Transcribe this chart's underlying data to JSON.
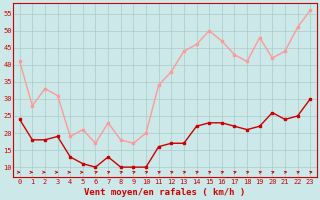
{
  "title": "",
  "xlabel": "Vent moyen/en rafales ( km/h )",
  "xlabel_color": "#cc0000",
  "bg_color": "#cce8e8",
  "grid_color": "#aacccc",
  "ylim": [
    7,
    58
  ],
  "yticks": [
    10,
    15,
    20,
    25,
    30,
    35,
    40,
    45,
    50,
    55
  ],
  "xlim": [
    -0.5,
    23.5
  ],
  "xticks": [
    0,
    1,
    2,
    3,
    4,
    5,
    6,
    7,
    8,
    9,
    10,
    11,
    12,
    13,
    14,
    15,
    16,
    17,
    18,
    19,
    20,
    21,
    22,
    23
  ],
  "mean_wind": [
    24,
    18,
    18,
    19,
    13,
    11,
    10,
    13,
    10,
    10,
    10,
    16,
    17,
    17,
    22,
    23,
    23,
    22,
    21,
    22,
    26,
    24,
    25,
    30
  ],
  "gust_wind": [
    41,
    28,
    33,
    31,
    19,
    21,
    17,
    23,
    18,
    17,
    20,
    34,
    38,
    44,
    46,
    50,
    47,
    43,
    41,
    48,
    42,
    44,
    51,
    56
  ],
  "mean_color": "#cc0000",
  "gust_color": "#ff9999",
  "mean_lw": 1.0,
  "gust_lw": 1.0,
  "marker_size": 1.8,
  "tick_fontsize": 5.0,
  "xlabel_fontsize": 6.5
}
